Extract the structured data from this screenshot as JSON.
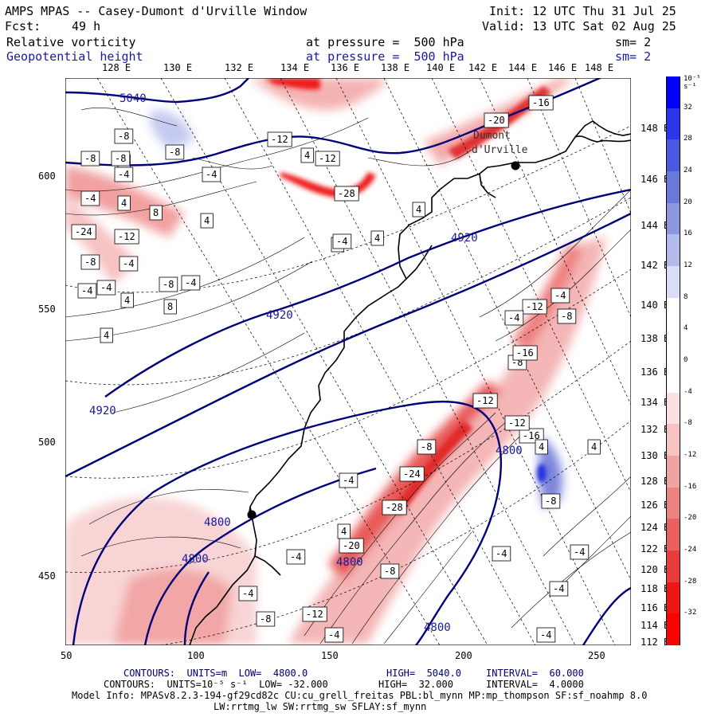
{
  "header": {
    "title": "AMPS MPAS -- Casey-Dumont d'Urville Window",
    "init": "Init: 12 UTC Thu 31 Jul 25",
    "fcst_label": "Fcst:",
    "fcst_value": "49 h",
    "valid": "Valid: 13 UTC Sat 02 Aug 25",
    "field1_name": "Relative vorticity",
    "field1_level": "at pressure =  500 hPa",
    "field1_sm": "sm= 2",
    "field2_name": "Geopotential height",
    "field2_level": "at pressure =  500 hPa",
    "field2_sm": "sm= 2"
  },
  "top_lon_labels": [
    "128 E",
    "130 E",
    "132 E",
    "134 E",
    "136 E",
    "138 E",
    "140 E",
    "142 E",
    "144 E",
    "146 E",
    "148 E"
  ],
  "left_labels": [
    "600",
    "550",
    "500",
    "450"
  ],
  "bottom_labels": [
    "50",
    "100",
    "150",
    "200",
    "250"
  ],
  "right_lon_labels": [
    "148 E",
    "146 E",
    "144 E",
    "142 E",
    "140 E",
    "138 E",
    "136 E",
    "134 E",
    "132 E",
    "130 E",
    "128 E",
    "126 E",
    "124 E",
    "122 E",
    "120 E",
    "118 E",
    "116 E",
    "114 E",
    "112 E"
  ],
  "place_label_1": "Dumont",
  "place_label_2": "d'Urville",
  "colorbar": {
    "unit": "10⁻⁵ s⁻¹",
    "ticks": [
      "32",
      "28",
      "24",
      "20",
      "16",
      "12",
      "8",
      "4",
      "0",
      "-4",
      "-8",
      "-12",
      "-16",
      "-20",
      "-24",
      "-28",
      "-32"
    ],
    "colors": [
      "#0000ff",
      "#2a36ee",
      "#4a59e2",
      "#6a78d8",
      "#8d97df",
      "#b3bbec",
      "#d9ddf6",
      "#ffffff",
      "#ffffff",
      "#ffffff",
      "#fbe1e1",
      "#f6c2c2",
      "#f1a3a3",
      "#ec8282",
      "#e86060",
      "#e83c3c",
      "#f01414",
      "#ff0000"
    ]
  },
  "height_contours": {
    "units": "m",
    "low": "4800.0",
    "high": "5040.0",
    "interval": "60.000",
    "line_color": "#00007a",
    "labels": [
      "5040",
      "4920",
      "4920",
      "4920",
      "4800",
      "4800",
      "4800",
      "4800",
      "4800"
    ]
  },
  "vort_contours": {
    "low": "-32.000",
    "high": "32.000",
    "interval": "4.0000",
    "box_labels": [
      "-8",
      "8",
      "-4",
      "-8",
      "-8",
      "-8",
      "-12",
      "4",
      "-4",
      "-20",
      "-16",
      "-12",
      "-28",
      "-24",
      "-12",
      "-4",
      "4",
      "8",
      "4",
      "-8",
      "-4",
      "4",
      "4",
      "4",
      "-4",
      "8",
      "4",
      "-4",
      "-4",
      "-8",
      "4",
      "-12",
      "-16",
      "-8",
      "-4",
      "-4",
      "-8",
      "-4",
      "-16",
      "-12",
      "-12",
      "-8",
      "4",
      "4",
      "-4",
      "-8",
      "-4",
      "-4",
      "-28",
      "-24",
      "-20",
      "-8",
      "-12",
      "-4",
      "-4",
      "-4",
      "-4",
      "4",
      "-4",
      "-8"
    ]
  },
  "footer": {
    "line1_a": "CONTOURS:  UNITS=m  LOW=  4800.0",
    "line1_b": "HIGH=  5040.0",
    "line1_c": "INTERVAL=  60.000",
    "line2_a": "CONTOURS:  UNITS=10⁻⁵ s⁻¹  LOW= -32.000",
    "line2_b": "HIGH=  32.000",
    "line2_c": "INTERVAL=  4.0000",
    "line3": "Model Info: MPASv8.2.3-194-gf29cd82c CU:cu_grell_freitas PBL:bl_mynn MP:mp_thompson SF:sf_noahmp 8.0",
    "line4": "LW:rrtmg_lw SW:rrtmg_sw SFLAY:sf_mynn"
  }
}
